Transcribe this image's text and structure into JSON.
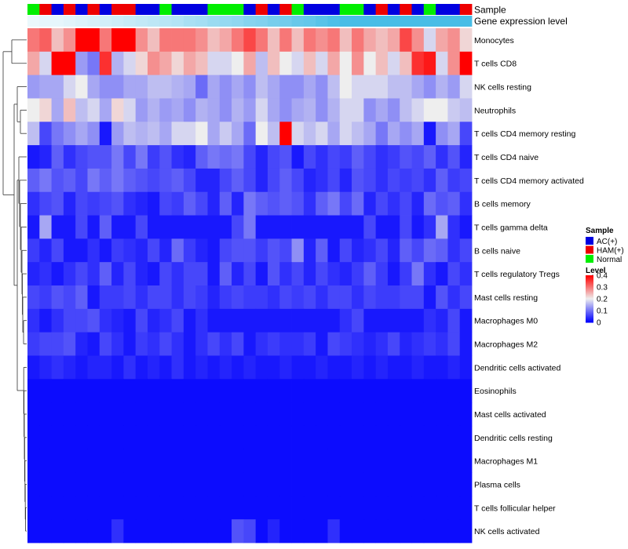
{
  "chart_data": {
    "type": "heatmap",
    "title": "",
    "annotation_labels": [
      "Sample",
      "Gene expression level"
    ],
    "sample_groups": [
      "N",
      "H",
      "A",
      "H",
      "A",
      "H",
      "A",
      "H",
      "H",
      "A",
      "A",
      "N",
      "A",
      "A",
      "A",
      "N",
      "N",
      "N",
      "A",
      "H",
      "A",
      "H",
      "N",
      "A",
      "A",
      "A",
      "N",
      "N",
      "A",
      "H",
      "A",
      "H",
      "A",
      "N",
      "A",
      "A",
      "H"
    ],
    "expression_level_bar": [
      0.04,
      0.05,
      0.05,
      0.06,
      0.07,
      0.08,
      0.09,
      0.1,
      0.11,
      0.12,
      0.13,
      0.14,
      0.15,
      0.17,
      0.18,
      0.2,
      0.21,
      0.22,
      0.24,
      0.25,
      0.27,
      0.28,
      0.3,
      0.31,
      0.33,
      0.35,
      0.36,
      0.38,
      0.4,
      0.41,
      0.43,
      0.45,
      0.47,
      0.5,
      0.52,
      0.55,
      0.58
    ],
    "rows": [
      {
        "label": "Monocytes",
        "values": [
          0.3,
          0.32,
          0.24,
          0.28,
          0.4,
          0.4,
          0.3,
          0.4,
          0.4,
          0.28,
          0.24,
          0.3,
          0.3,
          0.3,
          0.28,
          0.24,
          0.26,
          0.3,
          0.34,
          0.3,
          0.24,
          0.3,
          0.24,
          0.3,
          0.28,
          0.3,
          0.24,
          0.3,
          0.26,
          0.24,
          0.26,
          0.34,
          0.28,
          0.18,
          0.26,
          0.28,
          0.22
        ]
      },
      {
        "label": "T cells CD8",
        "values": [
          0.26,
          0.18,
          0.4,
          0.4,
          0.13,
          0.1,
          0.36,
          0.15,
          0.18,
          0.22,
          0.28,
          0.26,
          0.22,
          0.26,
          0.24,
          0.18,
          0.18,
          0.2,
          0.26,
          0.16,
          0.24,
          0.2,
          0.18,
          0.24,
          0.18,
          0.26,
          0.2,
          0.28,
          0.2,
          0.24,
          0.18,
          0.24,
          0.36,
          0.38,
          0.18,
          0.28,
          0.4
        ]
      },
      {
        "label": "NK cells resting",
        "values": [
          0.13,
          0.14,
          0.14,
          0.18,
          0.2,
          0.14,
          0.12,
          0.12,
          0.14,
          0.14,
          0.16,
          0.16,
          0.15,
          0.14,
          0.09,
          0.14,
          0.12,
          0.14,
          0.12,
          0.16,
          0.14,
          0.12,
          0.12,
          0.14,
          0.12,
          0.16,
          0.2,
          0.18,
          0.18,
          0.18,
          0.16,
          0.16,
          0.14,
          0.12,
          0.15,
          0.13,
          0.18
        ]
      },
      {
        "label": "Neutrophils",
        "values": [
          0.2,
          0.22,
          0.14,
          0.24,
          0.16,
          0.18,
          0.14,
          0.22,
          0.18,
          0.13,
          0.15,
          0.13,
          0.14,
          0.12,
          0.15,
          0.14,
          0.12,
          0.15,
          0.13,
          0.18,
          0.14,
          0.12,
          0.14,
          0.15,
          0.12,
          0.15,
          0.18,
          0.18,
          0.12,
          0.14,
          0.12,
          0.16,
          0.18,
          0.2,
          0.2,
          0.17,
          0.16
        ]
      },
      {
        "label": "T cells CD4 memory resting",
        "values": [
          0.16,
          0.06,
          0.1,
          0.12,
          0.14,
          0.12,
          0.02,
          0.13,
          0.16,
          0.15,
          0.16,
          0.14,
          0.18,
          0.18,
          0.2,
          0.14,
          0.17,
          0.14,
          0.09,
          0.2,
          0.16,
          0.4,
          0.18,
          0.16,
          0.18,
          0.14,
          0.18,
          0.16,
          0.14,
          0.1,
          0.14,
          0.12,
          0.14,
          0.02,
          0.12,
          0.14,
          0.06
        ]
      },
      {
        "label": "T cells CD4 naive",
        "values": [
          0.02,
          0.03,
          0.08,
          0.04,
          0.06,
          0.07,
          0.07,
          0.1,
          0.06,
          0.1,
          0.05,
          0.07,
          0.04,
          0.03,
          0.08,
          0.1,
          0.09,
          0.1,
          0.06,
          0.03,
          0.06,
          0.07,
          0.02,
          0.06,
          0.04,
          0.06,
          0.05,
          0.08,
          0.06,
          0.04,
          0.05,
          0.07,
          0.06,
          0.08,
          0.04,
          0.07,
          0.03
        ]
      },
      {
        "label": "T cells CD4 memory activated",
        "values": [
          0.08,
          0.1,
          0.07,
          0.08,
          0.06,
          0.1,
          0.08,
          0.1,
          0.08,
          0.07,
          0.06,
          0.07,
          0.08,
          0.06,
          0.03,
          0.03,
          0.06,
          0.08,
          0.06,
          0.03,
          0.06,
          0.08,
          0.06,
          0.03,
          0.04,
          0.06,
          0.03,
          0.07,
          0.06,
          0.04,
          0.06,
          0.05,
          0.06,
          0.04,
          0.08,
          0.05,
          0.06
        ]
      },
      {
        "label": "B cells memory",
        "values": [
          0.04,
          0.06,
          0.07,
          0.03,
          0.06,
          0.05,
          0.06,
          0.07,
          0.04,
          0.03,
          0.02,
          0.06,
          0.05,
          0.08,
          0.06,
          0.03,
          0.08,
          0.03,
          0.1,
          0.08,
          0.07,
          0.08,
          0.07,
          0.04,
          0.08,
          0.1,
          0.06,
          0.09,
          0.03,
          0.06,
          0.04,
          0.06,
          0.03,
          0.09,
          0.07,
          0.08,
          0.04
        ]
      },
      {
        "label": "T cells gamma delta",
        "values": [
          0.02,
          0.14,
          0.02,
          0.02,
          0.06,
          0.02,
          0.08,
          0.02,
          0.02,
          0.06,
          0.02,
          0.02,
          0.02,
          0.02,
          0.02,
          0.02,
          0.02,
          0.06,
          0.1,
          0.02,
          0.02,
          0.02,
          0.02,
          0.02,
          0.02,
          0.02,
          0.02,
          0.02,
          0.06,
          0.02,
          0.02,
          0.06,
          0.02,
          0.04,
          0.14,
          0.04,
          0.02
        ]
      },
      {
        "label": "B cells naive",
        "values": [
          0.05,
          0.03,
          0.06,
          0.02,
          0.02,
          0.04,
          0.02,
          0.05,
          0.04,
          0.03,
          0.06,
          0.03,
          0.09,
          0.05,
          0.03,
          0.02,
          0.06,
          0.07,
          0.07,
          0.05,
          0.07,
          0.06,
          0.12,
          0.03,
          0.08,
          0.02,
          0.06,
          0.03,
          0.04,
          0.06,
          0.03,
          0.08,
          0.06,
          0.09,
          0.08,
          0.04,
          0.06
        ]
      },
      {
        "label": "T cells regulatory  Tregs",
        "values": [
          0.03,
          0.04,
          0.02,
          0.04,
          0.06,
          0.04,
          0.08,
          0.03,
          0.06,
          0.03,
          0.02,
          0.06,
          0.04,
          0.06,
          0.06,
          0.02,
          0.08,
          0.03,
          0.06,
          0.02,
          0.07,
          0.04,
          0.06,
          0.03,
          0.06,
          0.04,
          0.03,
          0.05,
          0.08,
          0.05,
          0.02,
          0.05,
          0.1,
          0.04,
          0.02,
          0.06,
          0.04
        ]
      },
      {
        "label": "Mast cells resting",
        "values": [
          0.06,
          0.05,
          0.07,
          0.06,
          0.08,
          0.02,
          0.05,
          0.05,
          0.06,
          0.04,
          0.06,
          0.06,
          0.04,
          0.06,
          0.05,
          0.03,
          0.05,
          0.06,
          0.05,
          0.05,
          0.04,
          0.06,
          0.05,
          0.06,
          0.04,
          0.06,
          0.06,
          0.04,
          0.06,
          0.05,
          0.05,
          0.06,
          0.06,
          0.02,
          0.07,
          0.04,
          0.06
        ]
      },
      {
        "label": "Macrophages M0",
        "values": [
          0.04,
          0.02,
          0.04,
          0.06,
          0.06,
          0.07,
          0.04,
          0.03,
          0.02,
          0.06,
          0.03,
          0.04,
          0.06,
          0.02,
          0.04,
          0.02,
          0.02,
          0.02,
          0.02,
          0.02,
          0.02,
          0.02,
          0.02,
          0.02,
          0.02,
          0.02,
          0.04,
          0.06,
          0.02,
          0.02,
          0.02,
          0.02,
          0.02,
          0.04,
          0.03,
          0.06,
          0.02
        ]
      },
      {
        "label": "Macrophages M2",
        "values": [
          0.05,
          0.06,
          0.06,
          0.07,
          0.03,
          0.02,
          0.06,
          0.04,
          0.02,
          0.05,
          0.04,
          0.06,
          0.04,
          0.02,
          0.04,
          0.06,
          0.04,
          0.06,
          0.02,
          0.04,
          0.05,
          0.04,
          0.04,
          0.05,
          0.02,
          0.06,
          0.05,
          0.04,
          0.03,
          0.04,
          0.06,
          0.03,
          0.04,
          0.05,
          0.04,
          0.06,
          0.02
        ]
      },
      {
        "label": "Dendritic cells activated",
        "values": [
          0.02,
          0.03,
          0.04,
          0.03,
          0.02,
          0.03,
          0.03,
          0.02,
          0.04,
          0.02,
          0.03,
          0.02,
          0.04,
          0.02,
          0.03,
          0.02,
          0.03,
          0.02,
          0.03,
          0.02,
          0.02,
          0.03,
          0.02,
          0.02,
          0.03,
          0.02,
          0.02,
          0.03,
          0.02,
          0.03,
          0.02,
          0.02,
          0.03,
          0.02,
          0.02,
          0.03,
          0.02
        ]
      },
      {
        "label": "Eosinophils",
        "values": [
          0.01,
          0.01,
          0.01,
          0.01,
          0.01,
          0.01,
          0.01,
          0.01,
          0.01,
          0.01,
          0.01,
          0.01,
          0.01,
          0.01,
          0.01,
          0.01,
          0.01,
          0.01,
          0.01,
          0.01,
          0.01,
          0.01,
          0.01,
          0.01,
          0.01,
          0.01,
          0.01,
          0.01,
          0.01,
          0.01,
          0.01,
          0.01,
          0.01,
          0.01,
          0.01,
          0.01,
          0.01
        ]
      },
      {
        "label": "Mast cells activated",
        "values": [
          0.01,
          0.01,
          0.01,
          0.01,
          0.01,
          0.01,
          0.01,
          0.01,
          0.01,
          0.01,
          0.01,
          0.01,
          0.01,
          0.01,
          0.01,
          0.01,
          0.01,
          0.01,
          0.01,
          0.01,
          0.01,
          0.01,
          0.01,
          0.01,
          0.01,
          0.01,
          0.01,
          0.01,
          0.01,
          0.01,
          0.01,
          0.01,
          0.01,
          0.01,
          0.01,
          0.01,
          0.01
        ]
      },
      {
        "label": "Dendritic cells resting",
        "values": [
          0.01,
          0.01,
          0.01,
          0.01,
          0.01,
          0.01,
          0.01,
          0.01,
          0.01,
          0.01,
          0.01,
          0.01,
          0.01,
          0.01,
          0.01,
          0.01,
          0.01,
          0.01,
          0.01,
          0.01,
          0.01,
          0.01,
          0.01,
          0.01,
          0.01,
          0.01,
          0.01,
          0.01,
          0.01,
          0.01,
          0.01,
          0.01,
          0.01,
          0.01,
          0.01,
          0.01,
          0.01
        ]
      },
      {
        "label": "Macrophages M1",
        "values": [
          0.01,
          0.01,
          0.01,
          0.01,
          0.01,
          0.01,
          0.01,
          0.01,
          0.01,
          0.01,
          0.01,
          0.01,
          0.01,
          0.01,
          0.01,
          0.01,
          0.01,
          0.01,
          0.01,
          0.01,
          0.01,
          0.01,
          0.01,
          0.01,
          0.01,
          0.01,
          0.01,
          0.01,
          0.01,
          0.01,
          0.01,
          0.01,
          0.01,
          0.01,
          0.01,
          0.01,
          0.01
        ]
      },
      {
        "label": "Plasma cells",
        "values": [
          0.01,
          0.01,
          0.01,
          0.01,
          0.01,
          0.01,
          0.01,
          0.01,
          0.01,
          0.01,
          0.01,
          0.01,
          0.01,
          0.01,
          0.01,
          0.01,
          0.01,
          0.01,
          0.01,
          0.01,
          0.01,
          0.01,
          0.01,
          0.01,
          0.01,
          0.01,
          0.01,
          0.01,
          0.01,
          0.01,
          0.01,
          0.01,
          0.01,
          0.01,
          0.01,
          0.01,
          0.01
        ]
      },
      {
        "label": "T cells follicular helper",
        "values": [
          0.01,
          0.01,
          0.01,
          0.01,
          0.01,
          0.01,
          0.01,
          0.01,
          0.01,
          0.01,
          0.01,
          0.01,
          0.01,
          0.01,
          0.01,
          0.01,
          0.01,
          0.01,
          0.01,
          0.01,
          0.01,
          0.01,
          0.01,
          0.01,
          0.01,
          0.01,
          0.01,
          0.01,
          0.01,
          0.01,
          0.01,
          0.01,
          0.01,
          0.01,
          0.01,
          0.01,
          0.01
        ]
      },
      {
        "label": "NK cells activated",
        "values": [
          0.01,
          0.01,
          0.01,
          0.01,
          0.01,
          0.01,
          0.01,
          0.04,
          0.01,
          0.01,
          0.01,
          0.01,
          0.01,
          0.01,
          0.01,
          0.01,
          0.01,
          0.07,
          0.06,
          0.01,
          0.03,
          0.01,
          0.01,
          0.01,
          0.01,
          0.04,
          0.01,
          0.01,
          0.01,
          0.01,
          0.01,
          0.01,
          0.01,
          0.01,
          0.01,
          0.01,
          0.01
        ]
      }
    ],
    "color_scale": {
      "min": 0,
      "max": 0.4,
      "low_color": "#0000ff",
      "mid_value": 0.2,
      "mid_color": "#eeeeee",
      "high_color": "#ff0000"
    },
    "legend_sample": {
      "title": "Sample",
      "entries": [
        {
          "key": "A",
          "label": "AC(+)",
          "color": "#0000e0"
        },
        {
          "key": "H",
          "label": "HAM(+)",
          "color": "#ee0000"
        },
        {
          "key": "N",
          "label": "Normal",
          "color": "#00ee00"
        }
      ]
    },
    "legend_level": {
      "title": "Level",
      "ticks": [
        "0.4",
        "0.3",
        "0.2",
        "0.1",
        "0"
      ],
      "tick_values": [
        0.4,
        0.3,
        0.2,
        0.1,
        0
      ]
    },
    "expression_bar_colors": {
      "low": "#ffffff",
      "high": "#48bde6"
    },
    "dendrogram_color": "#333333"
  }
}
